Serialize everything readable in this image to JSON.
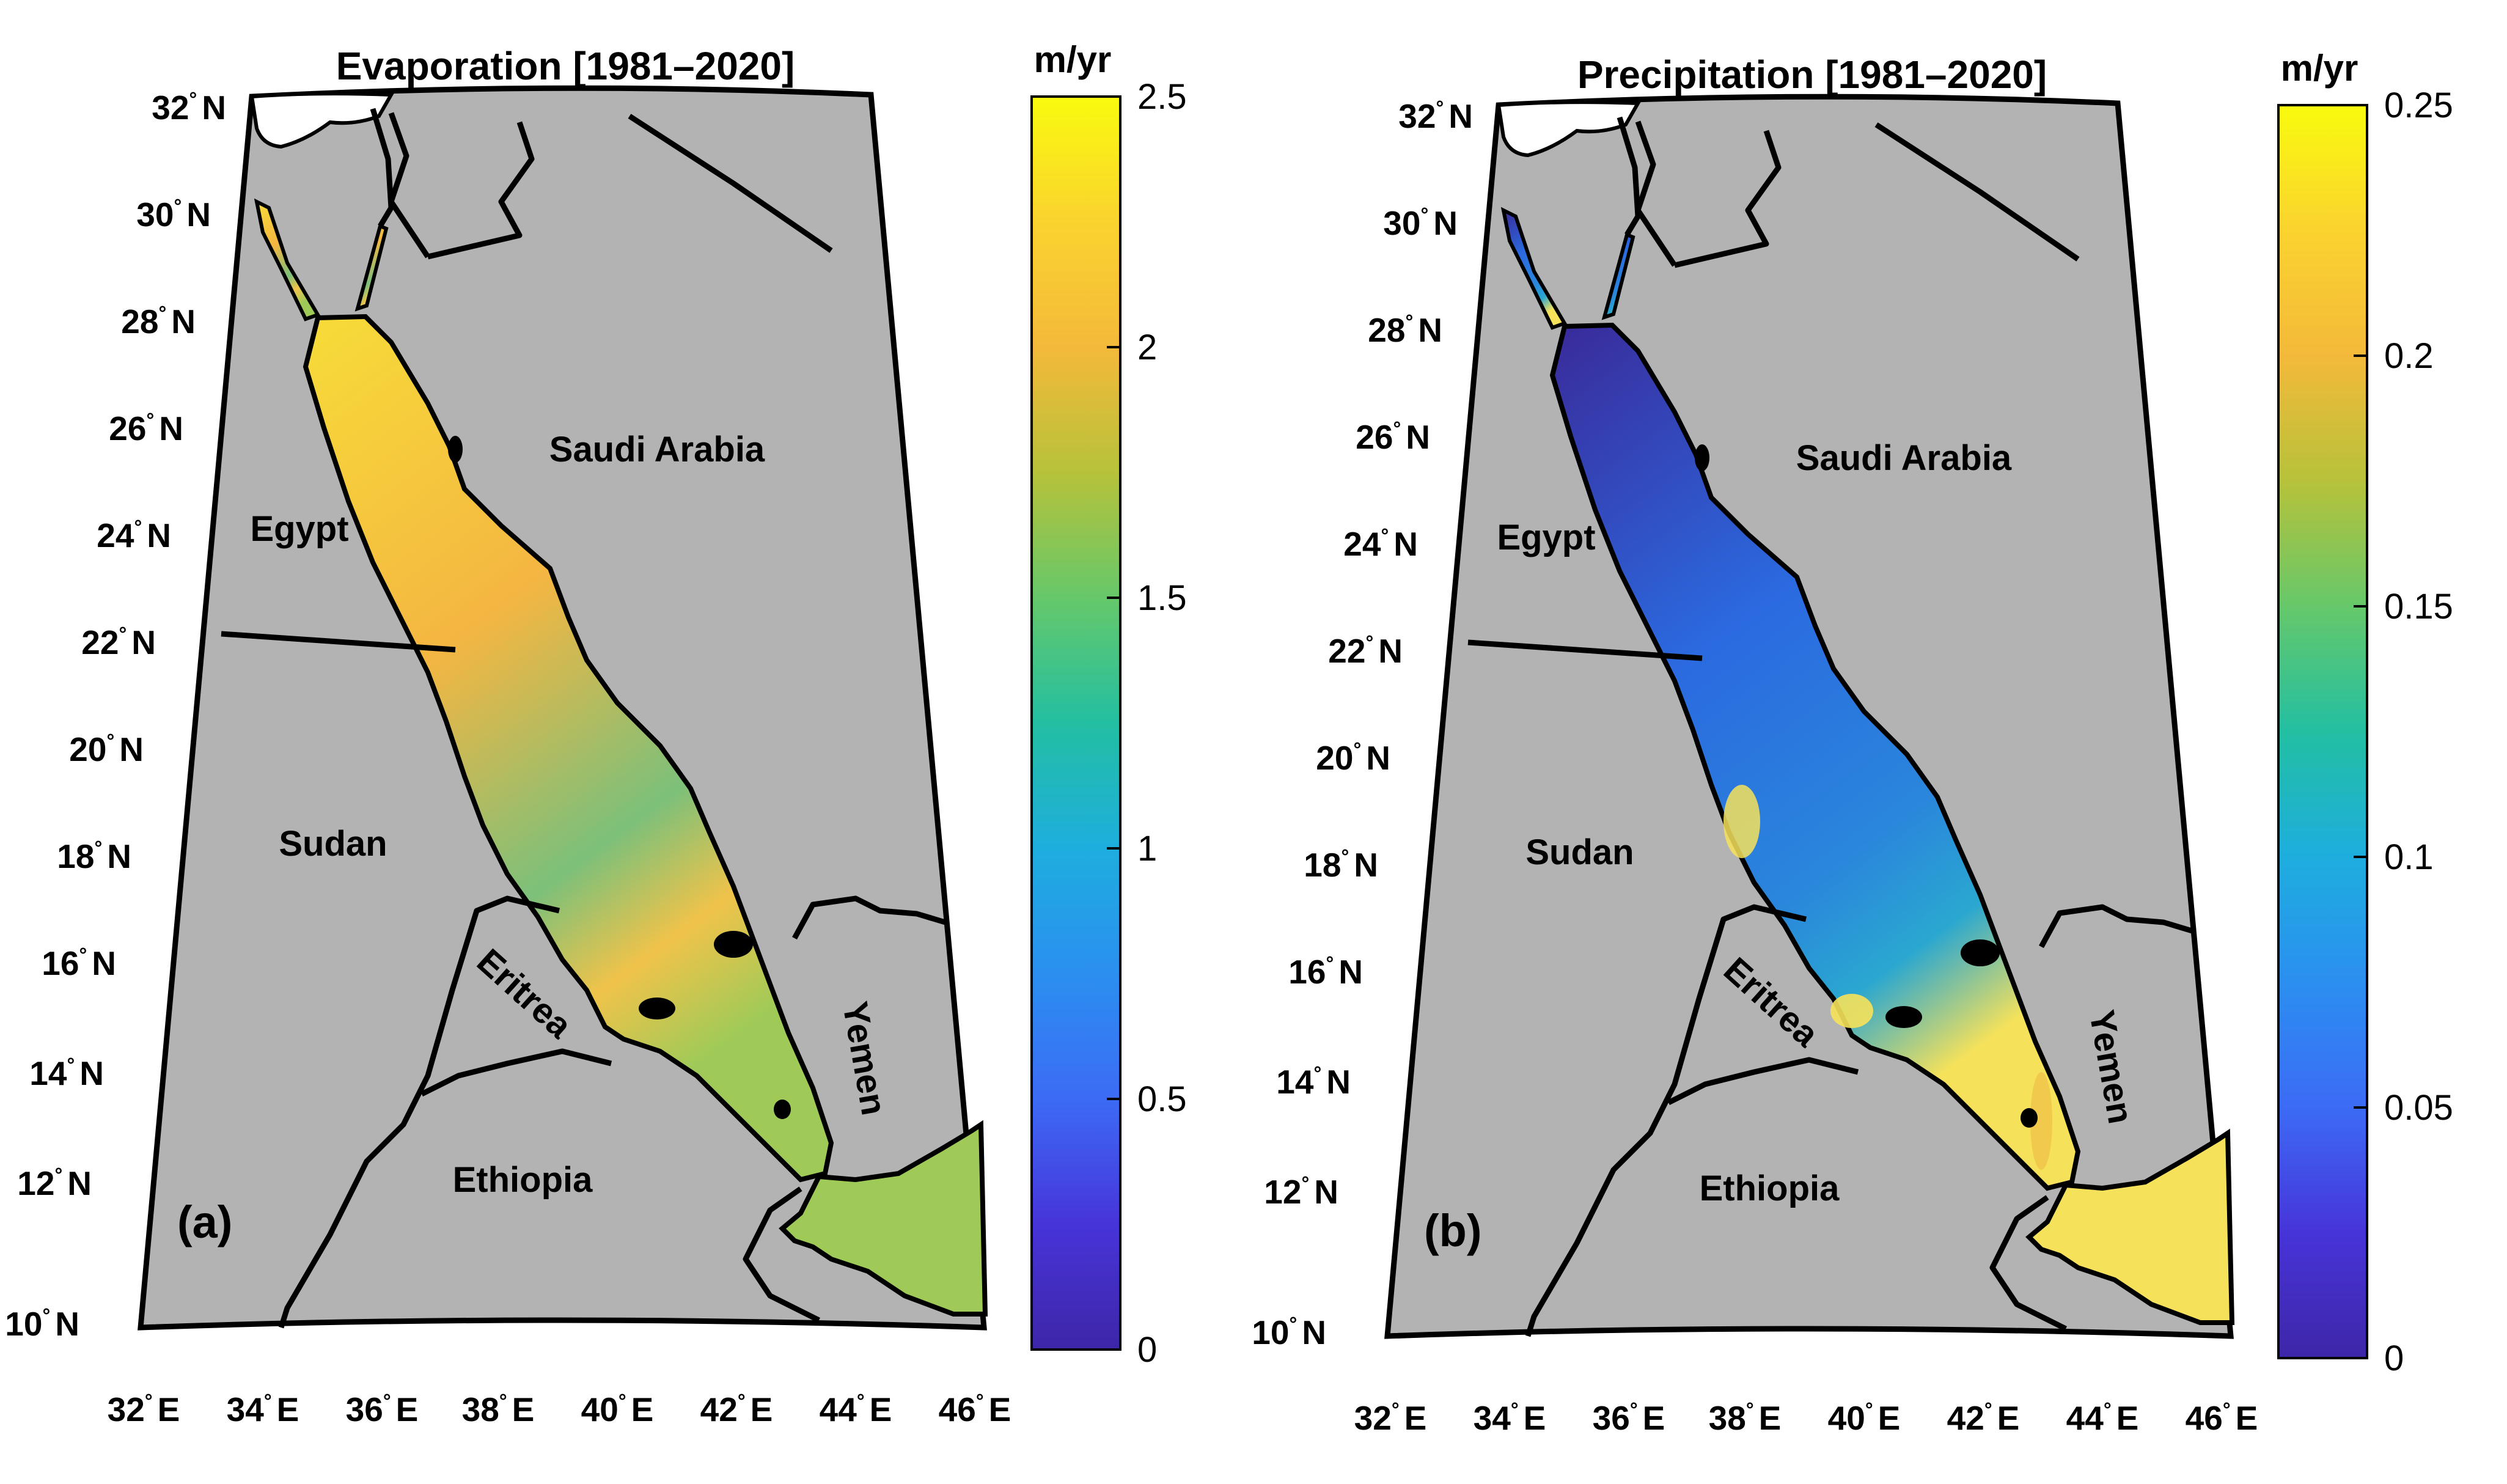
{
  "panels": [
    {
      "id": "a",
      "title": "Evaporation [1981–2020]",
      "panel_label": "(a)",
      "variable": "Evaporation",
      "period": "1981–2020",
      "colorbar": {
        "unit": "m/yr",
        "min": 0,
        "max": 2.5,
        "ticks": [
          "0",
          "0.5",
          "1",
          "1.5",
          "2",
          "2.5"
        ]
      },
      "field": {
        "north_sea": "#f7dc38",
        "central_sea": "#f4b642",
        "south_sea": "#7cc07a",
        "southern_strait": "#f0c34a",
        "gulf_of_aden": "#9fca58"
      }
    },
    {
      "id": "b",
      "title": "Precipitation [1981–2020]",
      "panel_label": "(b)",
      "variable": "Precipitation",
      "period": "1981–2020",
      "colorbar": {
        "unit": "m/yr",
        "min": 0,
        "max": 0.25,
        "ticks": [
          "0",
          "0.05",
          "0.1",
          "0.15",
          "0.2",
          "0.25"
        ]
      },
      "field": {
        "north_sea": "#3a2a9a",
        "central_sea": "#2b6ae0",
        "south_sea": "#2a86dc",
        "southern_strait": "#2aa7d0",
        "gulf_of_aden": "#f6e25a"
      }
    }
  ],
  "map": {
    "land_color": "#b3b3b3",
    "countries": [
      "Saudi Arabia",
      "Egypt",
      "Sudan",
      "Eritrea",
      "Yemen",
      "Ethiopia"
    ],
    "lat_labels": [
      "32",
      "30",
      "28",
      "26",
      "24",
      "22",
      "20",
      "18",
      "16",
      "14",
      "12",
      "10"
    ],
    "lat_suffix": "N",
    "lon_labels": [
      "32",
      "34",
      "36",
      "38",
      "40",
      "42",
      "44",
      "46"
    ],
    "lon_suffix": "E",
    "degree_symbol": "°"
  },
  "colormap": [
    "#3e26a8",
    "#4734d9",
    "#3c6bf5",
    "#2b8ff0",
    "#1eaede",
    "#23bfa2",
    "#66c86a",
    "#b7c23a",
    "#f4b93a",
    "#fad32f",
    "#f9fb0e"
  ]
}
